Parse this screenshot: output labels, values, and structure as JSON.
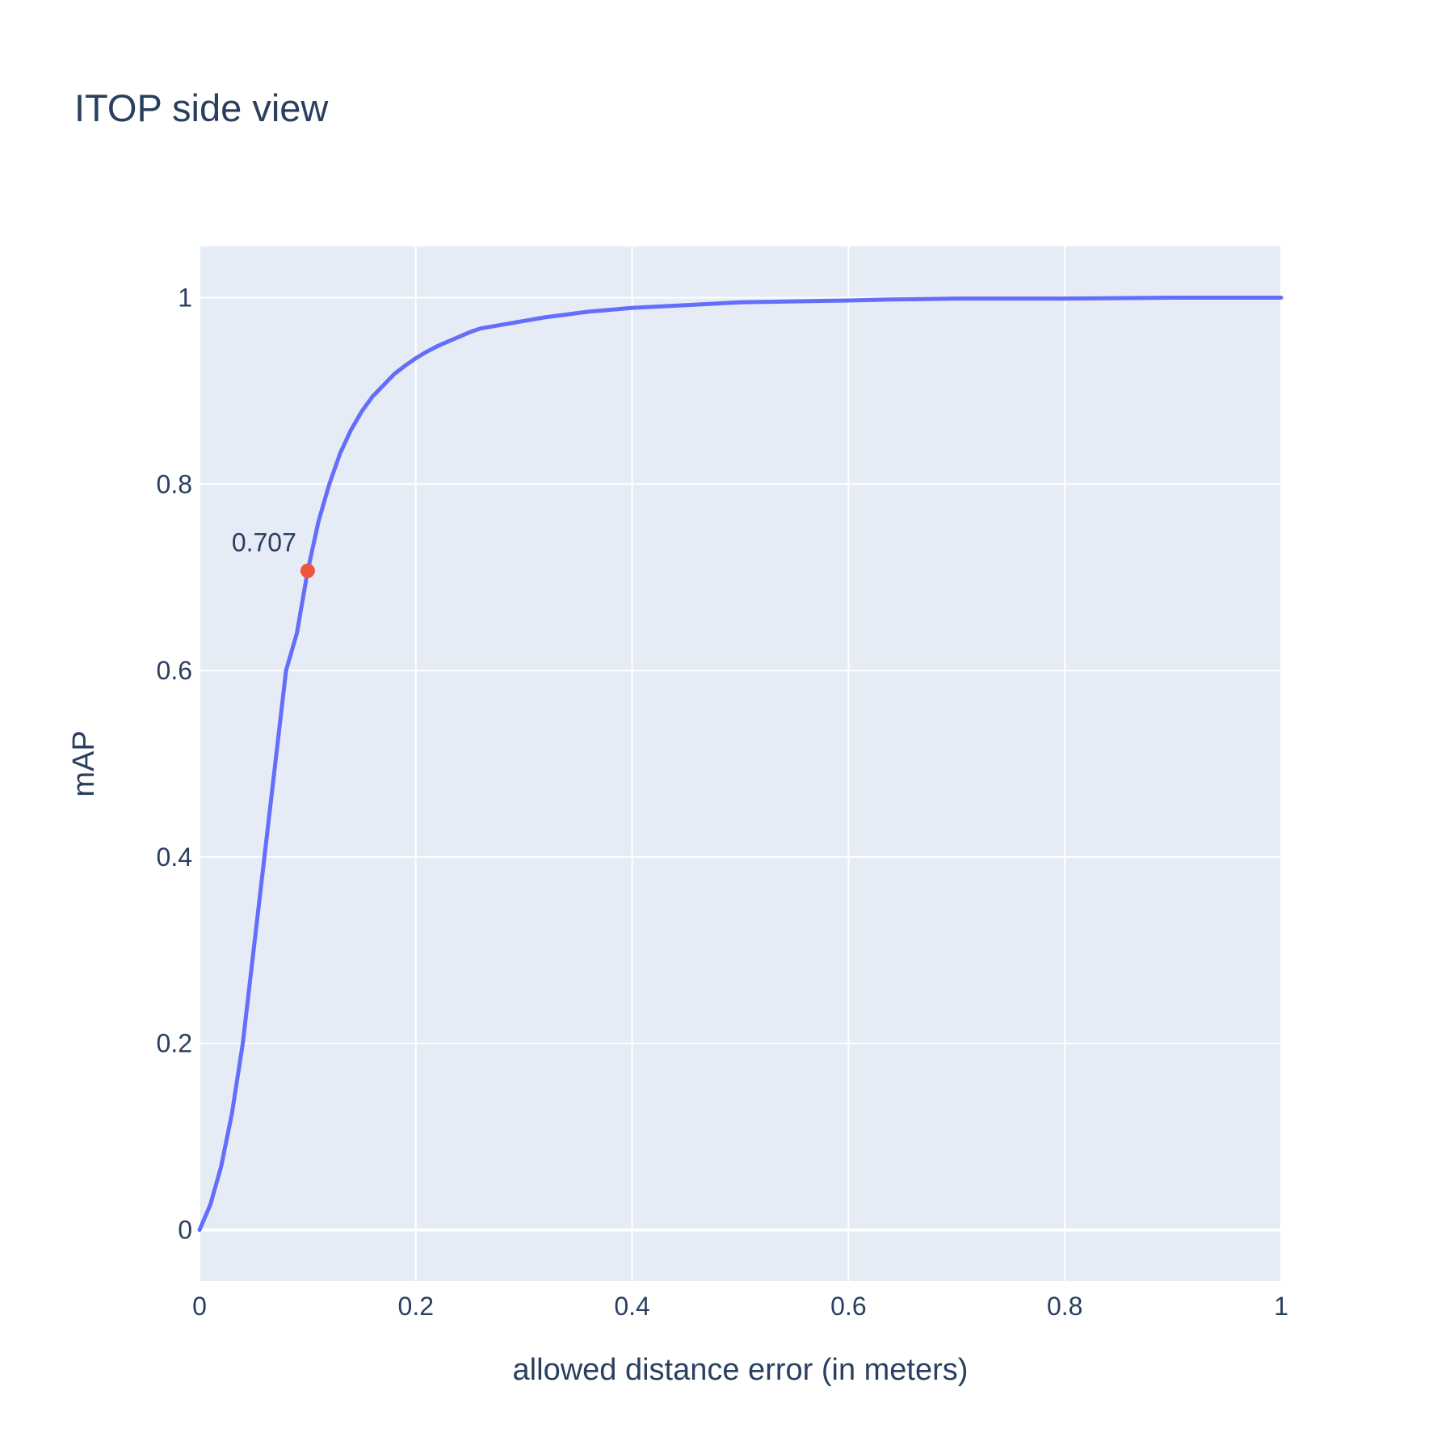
{
  "chart_data": {
    "type": "line",
    "title": "ITOP side view",
    "xlabel": "allowed distance error (in meters)",
    "ylabel": "mAP",
    "xlim": [
      0,
      1
    ],
    "ylim": [
      -0.055,
      1.055
    ],
    "grid": true,
    "x_ticks": [
      {
        "value": 0,
        "label": "0"
      },
      {
        "value": 0.2,
        "label": "0.2"
      },
      {
        "value": 0.4,
        "label": "0.4"
      },
      {
        "value": 0.6,
        "label": "0.6"
      },
      {
        "value": 0.8,
        "label": "0.8"
      },
      {
        "value": 1,
        "label": "1"
      }
    ],
    "y_ticks": [
      {
        "value": 0,
        "label": "0"
      },
      {
        "value": 0.2,
        "label": "0.2"
      },
      {
        "value": 0.4,
        "label": "0.4"
      },
      {
        "value": 0.6,
        "label": "0.6"
      },
      {
        "value": 0.8,
        "label": "0.8"
      },
      {
        "value": 1,
        "label": "1"
      }
    ],
    "series": [
      {
        "color": "#636efa",
        "x": [
          0,
          0.01,
          0.02,
          0.03,
          0.04,
          0.05,
          0.06,
          0.07,
          0.08,
          0.09,
          0.1,
          0.11,
          0.12,
          0.13,
          0.14,
          0.15,
          0.16,
          0.17,
          0.18,
          0.19,
          0.2,
          0.21,
          0.22,
          0.23,
          0.24,
          0.25,
          0.26,
          0.28,
          0.3,
          0.31,
          0.32,
          0.34,
          0.36,
          0.38,
          0.4,
          0.45,
          0.5,
          0.55,
          0.6,
          0.64,
          0.7,
          0.8,
          0.9,
          1.0
        ],
        "y": [
          0,
          0.027,
          0.068,
          0.125,
          0.2,
          0.3,
          0.4,
          0.5,
          0.6,
          0.64,
          0.707,
          0.76,
          0.8,
          0.833,
          0.858,
          0.878,
          0.894,
          0.906,
          0.918,
          0.927,
          0.935,
          0.942,
          0.948,
          0.953,
          0.958,
          0.963,
          0.967,
          0.971,
          0.975,
          0.977,
          0.979,
          0.982,
          0.985,
          0.987,
          0.989,
          0.992,
          0.995,
          0.996,
          0.997,
          0.998,
          0.999,
          0.999,
          1.0,
          1.0
        ]
      }
    ],
    "highlight_point": {
      "x": 0.1,
      "y": 0.707,
      "label": "0.707",
      "color": "#ef553b"
    },
    "colors": {
      "plot_background": "#e5ecf6",
      "grid": "#ffffff",
      "text": "#2a3f5f"
    }
  }
}
